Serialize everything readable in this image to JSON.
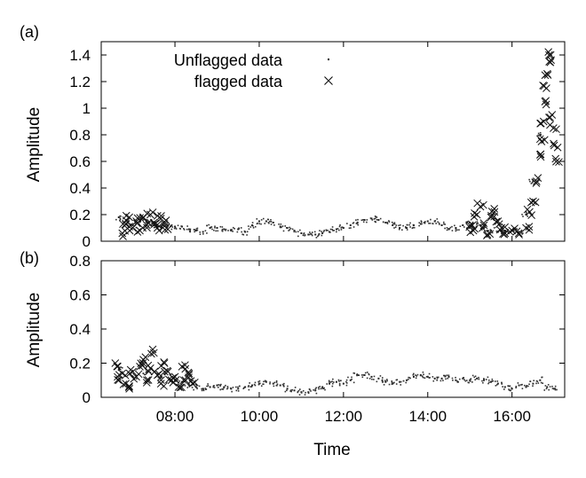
{
  "chart_data": [
    {
      "panel_label": "(a)",
      "type": "scatter",
      "ylabel": "Amplitude",
      "ylim": [
        0,
        1.5
      ],
      "yticks": [
        "0",
        "0.2",
        "0.4",
        "0.6",
        "0.8",
        "1",
        "1.2",
        "1.4"
      ],
      "legend": [
        {
          "label": "Unflagged data",
          "marker": "dot"
        },
        {
          "label": "flagged data",
          "marker": "cross"
        }
      ],
      "legend_position": "top-right",
      "series": [
        {
          "name": "Unflagged data",
          "marker": "dot",
          "points": [
            [
              "06:40",
              0.18
            ],
            [
              "06:50",
              0.15
            ],
            [
              "07:00",
              0.12
            ],
            [
              "07:10",
              0.16
            ],
            [
              "07:20",
              0.14
            ],
            [
              "07:30",
              0.12
            ],
            [
              "07:40",
              0.11
            ],
            [
              "07:50",
              0.12
            ],
            [
              "08:00",
              0.11
            ],
            [
              "08:10",
              0.11
            ],
            [
              "08:20",
              0.09
            ],
            [
              "08:30",
              0.08
            ],
            [
              "08:40",
              0.07
            ],
            [
              "08:50",
              0.1
            ],
            [
              "09:00",
              0.1
            ],
            [
              "09:10",
              0.09
            ],
            [
              "09:20",
              0.08
            ],
            [
              "09:30",
              0.09
            ],
            [
              "09:40",
              0.07
            ],
            [
              "09:50",
              0.12
            ],
            [
              "10:00",
              0.15
            ],
            [
              "10:10",
              0.15
            ],
            [
              "10:20",
              0.14
            ],
            [
              "10:30",
              0.11
            ],
            [
              "10:40",
              0.1
            ],
            [
              "10:50",
              0.08
            ],
            [
              "11:00",
              0.06
            ],
            [
              "11:10",
              0.05
            ],
            [
              "11:20",
              0.05
            ],
            [
              "11:30",
              0.06
            ],
            [
              "11:40",
              0.07
            ],
            [
              "11:50",
              0.09
            ],
            [
              "12:00",
              0.1
            ],
            [
              "12:10",
              0.12
            ],
            [
              "12:20",
              0.14
            ],
            [
              "12:30",
              0.16
            ],
            [
              "12:40",
              0.17
            ],
            [
              "12:50",
              0.16
            ],
            [
              "13:00",
              0.14
            ],
            [
              "13:10",
              0.12
            ],
            [
              "13:20",
              0.1
            ],
            [
              "13:30",
              0.1
            ],
            [
              "13:40",
              0.12
            ],
            [
              "13:50",
              0.13
            ],
            [
              "14:00",
              0.15
            ],
            [
              "14:10",
              0.15
            ],
            [
              "14:20",
              0.12
            ],
            [
              "14:30",
              0.09
            ],
            [
              "14:40",
              0.1
            ],
            [
              "14:50",
              0.12
            ],
            [
              "15:00",
              0.14
            ],
            [
              "15:10",
              0.13
            ],
            [
              "15:20",
              0.1
            ],
            [
              "15:30",
              0.08
            ],
            [
              "15:40",
              0.07
            ],
            [
              "15:50",
              0.08
            ],
            [
              "16:00",
              0.08
            ],
            [
              "16:10",
              0.07
            ],
            [
              "16:20",
              0.2
            ],
            [
              "16:30",
              0.45
            ],
            [
              "16:40",
              0.8
            ]
          ]
        },
        {
          "name": "flagged data",
          "marker": "cross",
          "points": [
            [
              "06:45",
              0.06
            ],
            [
              "06:50",
              0.13
            ],
            [
              "06:55",
              0.18
            ],
            [
              "07:00",
              0.1
            ],
            [
              "07:05",
              0.15
            ],
            [
              "07:10",
              0.08
            ],
            [
              "07:15",
              0.18
            ],
            [
              "07:20",
              0.12
            ],
            [
              "07:25",
              0.2
            ],
            [
              "07:30",
              0.14
            ],
            [
              "07:35",
              0.1
            ],
            [
              "07:40",
              0.17
            ],
            [
              "07:45",
              0.13
            ],
            [
              "07:50",
              0.09
            ],
            [
              "15:00",
              0.12
            ],
            [
              "15:05",
              0.08
            ],
            [
              "15:10",
              0.2
            ],
            [
              "15:15",
              0.26
            ],
            [
              "15:20",
              0.12
            ],
            [
              "15:25",
              0.05
            ],
            [
              "15:30",
              0.18
            ],
            [
              "15:35",
              0.22
            ],
            [
              "15:40",
              0.15
            ],
            [
              "15:45",
              0.1
            ],
            [
              "15:50",
              0.06
            ],
            [
              "16:00",
              0.08
            ],
            [
              "16:10",
              0.05
            ],
            [
              "16:20",
              0.1
            ],
            [
              "16:25",
              0.22
            ],
            [
              "16:30",
              0.3
            ],
            [
              "16:35",
              0.45
            ],
            [
              "16:40",
              0.65
            ],
            [
              "16:42",
              0.75
            ],
            [
              "16:45",
              0.9
            ],
            [
              "16:47",
              1.05
            ],
            [
              "16:49",
              1.15
            ],
            [
              "16:51",
              1.25
            ],
            [
              "16:53",
              1.35
            ],
            [
              "16:55",
              1.4
            ],
            [
              "16:57",
              0.95
            ],
            [
              "16:59",
              0.85
            ],
            [
              "17:00",
              0.72
            ],
            [
              "17:02",
              0.62
            ]
          ]
        }
      ]
    },
    {
      "panel_label": "(b)",
      "type": "scatter",
      "xlabel": "Time",
      "ylabel": "Amplitude",
      "ylim": [
        0,
        0.8
      ],
      "yticks": [
        "0",
        "0.2",
        "0.4",
        "0.6",
        "0.8"
      ],
      "xticks": [
        "08:00",
        "10:00",
        "12:00",
        "14:00",
        "16:00"
      ],
      "xlim": [
        "06:15",
        "17:15"
      ],
      "series": [
        {
          "name": "Unflagged data",
          "marker": "dot",
          "points": [
            [
              "06:40",
              0.16
            ],
            [
              "07:00",
              0.12
            ],
            [
              "07:20",
              0.15
            ],
            [
              "07:40",
              0.12
            ],
            [
              "08:00",
              0.1
            ],
            [
              "08:10",
              0.09
            ],
            [
              "08:20",
              0.07
            ],
            [
              "08:30",
              0.06
            ],
            [
              "08:40",
              0.05
            ],
            [
              "08:50",
              0.06
            ],
            [
              "09:00",
              0.07
            ],
            [
              "09:10",
              0.06
            ],
            [
              "09:20",
              0.05
            ],
            [
              "09:30",
              0.05
            ],
            [
              "09:40",
              0.06
            ],
            [
              "09:50",
              0.07
            ],
            [
              "10:00",
              0.08
            ],
            [
              "10:10",
              0.09
            ],
            [
              "10:20",
              0.08
            ],
            [
              "10:30",
              0.07
            ],
            [
              "10:40",
              0.05
            ],
            [
              "10:50",
              0.04
            ],
            [
              "11:00",
              0.03
            ],
            [
              "11:10",
              0.03
            ],
            [
              "11:20",
              0.04
            ],
            [
              "11:30",
              0.06
            ],
            [
              "11:40",
              0.08
            ],
            [
              "11:50",
              0.09
            ],
            [
              "12:00",
              0.08
            ],
            [
              "12:10",
              0.1
            ],
            [
              "12:20",
              0.13
            ],
            [
              "12:30",
              0.13
            ],
            [
              "12:40",
              0.12
            ],
            [
              "12:50",
              0.11
            ],
            [
              "13:00",
              0.09
            ],
            [
              "13:10",
              0.08
            ],
            [
              "13:20",
              0.09
            ],
            [
              "13:30",
              0.1
            ],
            [
              "13:40",
              0.12
            ],
            [
              "13:50",
              0.13
            ],
            [
              "14:00",
              0.12
            ],
            [
              "14:10",
              0.11
            ],
            [
              "14:20",
              0.11
            ],
            [
              "14:30",
              0.12
            ],
            [
              "14:40",
              0.1
            ],
            [
              "14:50",
              0.11
            ],
            [
              "15:00",
              0.1
            ],
            [
              "15:10",
              0.11
            ],
            [
              "15:20",
              0.1
            ],
            [
              "15:30",
              0.09
            ],
            [
              "15:40",
              0.08
            ],
            [
              "15:50",
              0.06
            ],
            [
              "16:00",
              0.05
            ],
            [
              "16:10",
              0.07
            ],
            [
              "16:20",
              0.06
            ],
            [
              "16:30",
              0.08
            ],
            [
              "16:40",
              0.1
            ],
            [
              "16:50",
              0.06
            ],
            [
              "17:00",
              0.05
            ]
          ]
        },
        {
          "name": "flagged data",
          "marker": "cross",
          "points": [
            [
              "06:35",
              0.2
            ],
            [
              "06:40",
              0.1
            ],
            [
              "06:45",
              0.14
            ],
            [
              "06:50",
              0.08
            ],
            [
              "06:55",
              0.05
            ],
            [
              "07:00",
              0.15
            ],
            [
              "07:05",
              0.12
            ],
            [
              "07:10",
              0.18
            ],
            [
              "07:15",
              0.22
            ],
            [
              "07:20",
              0.1
            ],
            [
              "07:25",
              0.17
            ],
            [
              "07:30",
              0.26
            ],
            [
              "07:35",
              0.13
            ],
            [
              "07:40",
              0.08
            ],
            [
              "07:45",
              0.2
            ],
            [
              "07:50",
              0.15
            ],
            [
              "07:55",
              0.1
            ],
            [
              "08:00",
              0.12
            ],
            [
              "08:05",
              0.06
            ],
            [
              "08:10",
              0.18
            ],
            [
              "08:15",
              0.1
            ],
            [
              "08:20",
              0.14
            ],
            [
              "08:25",
              0.08
            ]
          ]
        }
      ]
    }
  ]
}
